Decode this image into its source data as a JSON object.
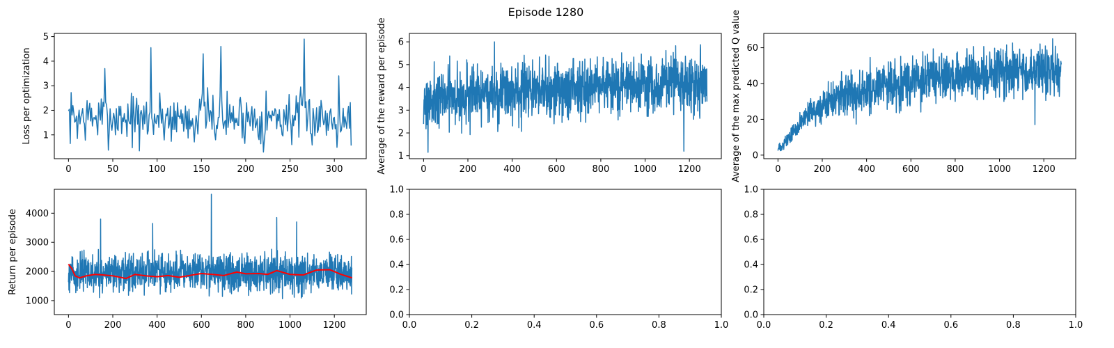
{
  "suptitle": "Episode 1280",
  "colors": {
    "series": "#1f77b4",
    "smooth": "#ff0000",
    "axis": "#000000"
  },
  "chart_data": [
    {
      "id": "loss",
      "type": "line",
      "ylabel": "Loss per optimization",
      "xlim": [
        -16,
        336
      ],
      "ylim": [
        0.03,
        5.13
      ],
      "xticks": [
        0,
        50,
        100,
        150,
        200,
        250,
        300
      ],
      "yticks": [
        1,
        2,
        3,
        4,
        5
      ],
      "n": 320,
      "series": [
        {
          "style": "noise",
          "base": [
            [
              0,
              1.7
            ],
            [
              320,
              1.7
            ]
          ],
          "amp": 0.9,
          "min": 0.3,
          "max": 4.95,
          "peaks": [
            [
              41,
              3.7
            ],
            [
              93,
              4.55
            ],
            [
              152,
              4.3
            ],
            [
              172,
              4.6
            ],
            [
              266,
              4.9
            ],
            [
              305,
              3.4
            ],
            [
              220,
              0.25
            ],
            [
              80,
              0.35
            ]
          ],
          "seed": 7
        }
      ]
    },
    {
      "id": "reward",
      "type": "line",
      "ylabel": "Average of the reward per episode",
      "xlim": [
        -64,
        1344
      ],
      "ylim": [
        0.87,
        6.37
      ],
      "xticks": [
        0,
        200,
        400,
        600,
        800,
        1000,
        1200
      ],
      "yticks": [
        1,
        2,
        3,
        4,
        5,
        6
      ],
      "n": 1280,
      "series": [
        {
          "style": "noise",
          "base": [
            [
              0,
              3.5
            ],
            [
              300,
              3.7
            ],
            [
              600,
              3.9
            ],
            [
              1000,
              4.1
            ],
            [
              1280,
              4.2
            ]
          ],
          "amp": 1.1,
          "min": 1.15,
          "max": 6.15,
          "peaks": [
            [
              20,
              1.15
            ],
            [
              1175,
              1.2
            ],
            [
              320,
              6.0
            ]
          ],
          "seed": 21
        }
      ]
    },
    {
      "id": "qvalue",
      "type": "line",
      "ylabel": "Average of the max predicted Q value",
      "xlim": [
        -64,
        1344
      ],
      "ylim": [
        -2,
        68
      ],
      "xticks": [
        0,
        200,
        400,
        600,
        800,
        1000,
        1200
      ],
      "yticks": [
        0,
        20,
        40,
        60
      ],
      "n": 1280,
      "series": [
        {
          "style": "noise",
          "base": [
            [
              0,
              3
            ],
            [
              50,
              10
            ],
            [
              100,
              18
            ],
            [
              200,
              28
            ],
            [
              300,
              33
            ],
            [
              400,
              37
            ],
            [
              600,
              41
            ],
            [
              800,
              44
            ],
            [
              1000,
              46
            ],
            [
              1280,
              48
            ]
          ],
          "amp_profile": [
            [
              0,
              2
            ],
            [
              100,
              5
            ],
            [
              200,
              9
            ],
            [
              400,
              11
            ],
            [
              1280,
              12
            ]
          ],
          "min": 2.5,
          "max": 65,
          "peaks": [
            [
              1240,
              65
            ],
            [
              1160,
              17
            ]
          ],
          "seed": 33
        }
      ]
    },
    {
      "id": "return",
      "type": "line",
      "ylabel": "Return per episode",
      "xlim": [
        -64,
        1344
      ],
      "ylim": [
        520,
        4820
      ],
      "xticks": [
        0,
        200,
        400,
        600,
        800,
        1000,
        1200
      ],
      "yticks": [
        1000,
        2000,
        3000,
        4000
      ],
      "n": 1280,
      "series": [
        {
          "style": "noise",
          "base": [
            [
              0,
              1950
            ],
            [
              1280,
              1950
            ]
          ],
          "amp": 550,
          "min": 650,
          "max": 4650,
          "peaks": [
            [
              645,
              4650
            ],
            [
              145,
              3800
            ],
            [
              940,
              3850
            ],
            [
              1030,
              3700
            ],
            [
              380,
              3650
            ]
          ],
          "seed": 55
        },
        {
          "style": "smooth",
          "points": [
            [
              0,
              2250
            ],
            [
              15,
              2100
            ],
            [
              30,
              1850
            ],
            [
              50,
              1780
            ],
            [
              80,
              1850
            ],
            [
              120,
              1900
            ],
            [
              160,
              1880
            ],
            [
              200,
              1850
            ],
            [
              260,
              1760
            ],
            [
              300,
              1900
            ],
            [
              350,
              1850
            ],
            [
              400,
              1820
            ],
            [
              450,
              1860
            ],
            [
              500,
              1800
            ],
            [
              560,
              1880
            ],
            [
              600,
              1930
            ],
            [
              650,
              1900
            ],
            [
              700,
              1860
            ],
            [
              760,
              1980
            ],
            [
              800,
              1920
            ],
            [
              860,
              1930
            ],
            [
              900,
              1900
            ],
            [
              940,
              2030
            ],
            [
              1000,
              1900
            ],
            [
              1060,
              1880
            ],
            [
              1120,
              2050
            ],
            [
              1180,
              2060
            ],
            [
              1230,
              1900
            ],
            [
              1280,
              1780
            ]
          ]
        }
      ]
    },
    {
      "id": "empty1",
      "type": "line",
      "ylabel": "",
      "xlim": [
        0,
        1
      ],
      "ylim": [
        0,
        1
      ],
      "xticks": [
        0.0,
        0.2,
        0.4,
        0.6,
        0.8,
        1.0
      ],
      "yticks": [
        0.0,
        0.2,
        0.4,
        0.6,
        0.8,
        1.0
      ],
      "n": 0,
      "series": []
    },
    {
      "id": "empty2",
      "type": "line",
      "ylabel": "",
      "xlim": [
        0,
        1
      ],
      "ylim": [
        0,
        1
      ],
      "xticks": [
        0.0,
        0.2,
        0.4,
        0.6,
        0.8,
        1.0
      ],
      "yticks": [
        0.0,
        0.2,
        0.4,
        0.6,
        0.8,
        1.0
      ],
      "n": 0,
      "series": []
    }
  ]
}
